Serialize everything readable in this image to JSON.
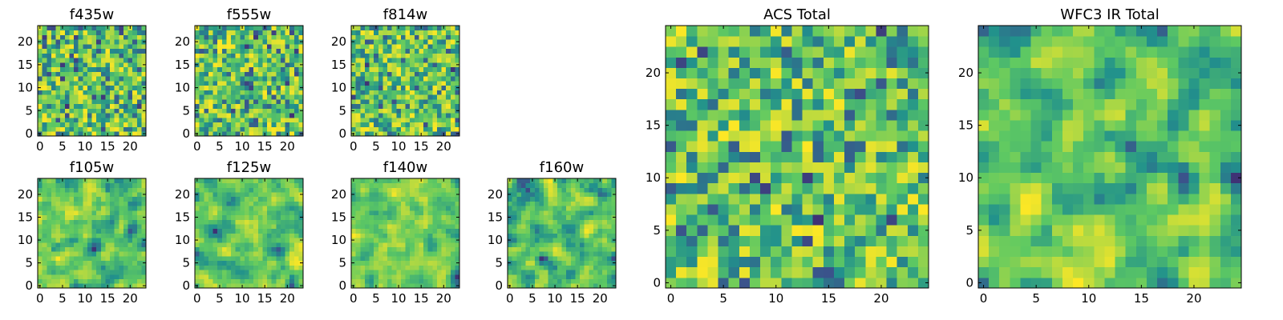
{
  "chart_data": [
    {
      "id": "f435w",
      "type": "heatmap",
      "title": "f435w",
      "grid": 24,
      "xticks": [
        "0",
        "5",
        "10",
        "15",
        "20"
      ],
      "yticks": [
        "0",
        "5",
        "10",
        "15",
        "20"
      ],
      "xlim": [
        0,
        24
      ],
      "ylim": [
        0,
        24
      ],
      "colormap": "viridis",
      "texture": "noise"
    },
    {
      "id": "f555w",
      "type": "heatmap",
      "title": "f555w",
      "grid": 24,
      "xticks": [
        "0",
        "5",
        "10",
        "15",
        "20"
      ],
      "yticks": [
        "0",
        "5",
        "10",
        "15",
        "20"
      ],
      "xlim": [
        0,
        24
      ],
      "ylim": [
        0,
        24
      ],
      "colormap": "viridis",
      "texture": "noise"
    },
    {
      "id": "f814w",
      "type": "heatmap",
      "title": "f814w",
      "grid": 24,
      "xticks": [
        "0",
        "5",
        "10",
        "15",
        "20"
      ],
      "yticks": [
        "0",
        "5",
        "10",
        "15",
        "20"
      ],
      "xlim": [
        0,
        24
      ],
      "ylim": [
        0,
        24
      ],
      "colormap": "viridis",
      "texture": "noise"
    },
    {
      "id": "f105w",
      "type": "heatmap",
      "title": "f105w",
      "grid": 24,
      "xticks": [
        "0",
        "5",
        "10",
        "15",
        "20"
      ],
      "yticks": [
        "0",
        "5",
        "10",
        "15",
        "20"
      ],
      "xlim": [
        0,
        24
      ],
      "ylim": [
        0,
        24
      ],
      "colormap": "viridis",
      "texture": "smooth"
    },
    {
      "id": "f125w",
      "type": "heatmap",
      "title": "f125w",
      "grid": 24,
      "xticks": [
        "0",
        "5",
        "10",
        "15",
        "20"
      ],
      "yticks": [
        "0",
        "5",
        "10",
        "15",
        "20"
      ],
      "xlim": [
        0,
        24
      ],
      "ylim": [
        0,
        24
      ],
      "colormap": "viridis",
      "texture": "smooth"
    },
    {
      "id": "f140w",
      "type": "heatmap",
      "title": "f140w",
      "grid": 24,
      "xticks": [
        "0",
        "5",
        "10",
        "15",
        "20"
      ],
      "yticks": [
        "0",
        "5",
        "10",
        "15",
        "20"
      ],
      "xlim": [
        0,
        24
      ],
      "ylim": [
        0,
        24
      ],
      "colormap": "viridis",
      "texture": "smooth"
    },
    {
      "id": "f160w",
      "type": "heatmap",
      "title": "f160w",
      "grid": 24,
      "xticks": [
        "0",
        "5",
        "10",
        "15",
        "20"
      ],
      "yticks": [
        "0",
        "5",
        "10",
        "15",
        "20"
      ],
      "xlim": [
        0,
        24
      ],
      "ylim": [
        0,
        24
      ],
      "colormap": "viridis",
      "texture": "smooth"
    },
    {
      "id": "acs-total",
      "type": "heatmap",
      "title": "ACS Total",
      "grid": 25,
      "xticks": [
        "0",
        "5",
        "10",
        "15",
        "20"
      ],
      "yticks": [
        "0",
        "5",
        "10",
        "15",
        "20"
      ],
      "xlim": [
        0,
        25
      ],
      "ylim": [
        0,
        25
      ],
      "colormap": "viridis",
      "texture": "noise"
    },
    {
      "id": "wfc3-ir-total",
      "type": "heatmap",
      "title": "WFC3 IR Total",
      "grid": 25,
      "xticks": [
        "0",
        "5",
        "10",
        "15",
        "20"
      ],
      "yticks": [
        "0",
        "5",
        "10",
        "15",
        "20"
      ],
      "xlim": [
        0,
        25
      ],
      "ylim": [
        0,
        25
      ],
      "colormap": "viridis",
      "texture": "smooth"
    }
  ],
  "colors": {
    "viridis": [
      "#440154",
      "#3b528b",
      "#21918c",
      "#5ec962",
      "#fde725"
    ],
    "frame": "#000000"
  }
}
